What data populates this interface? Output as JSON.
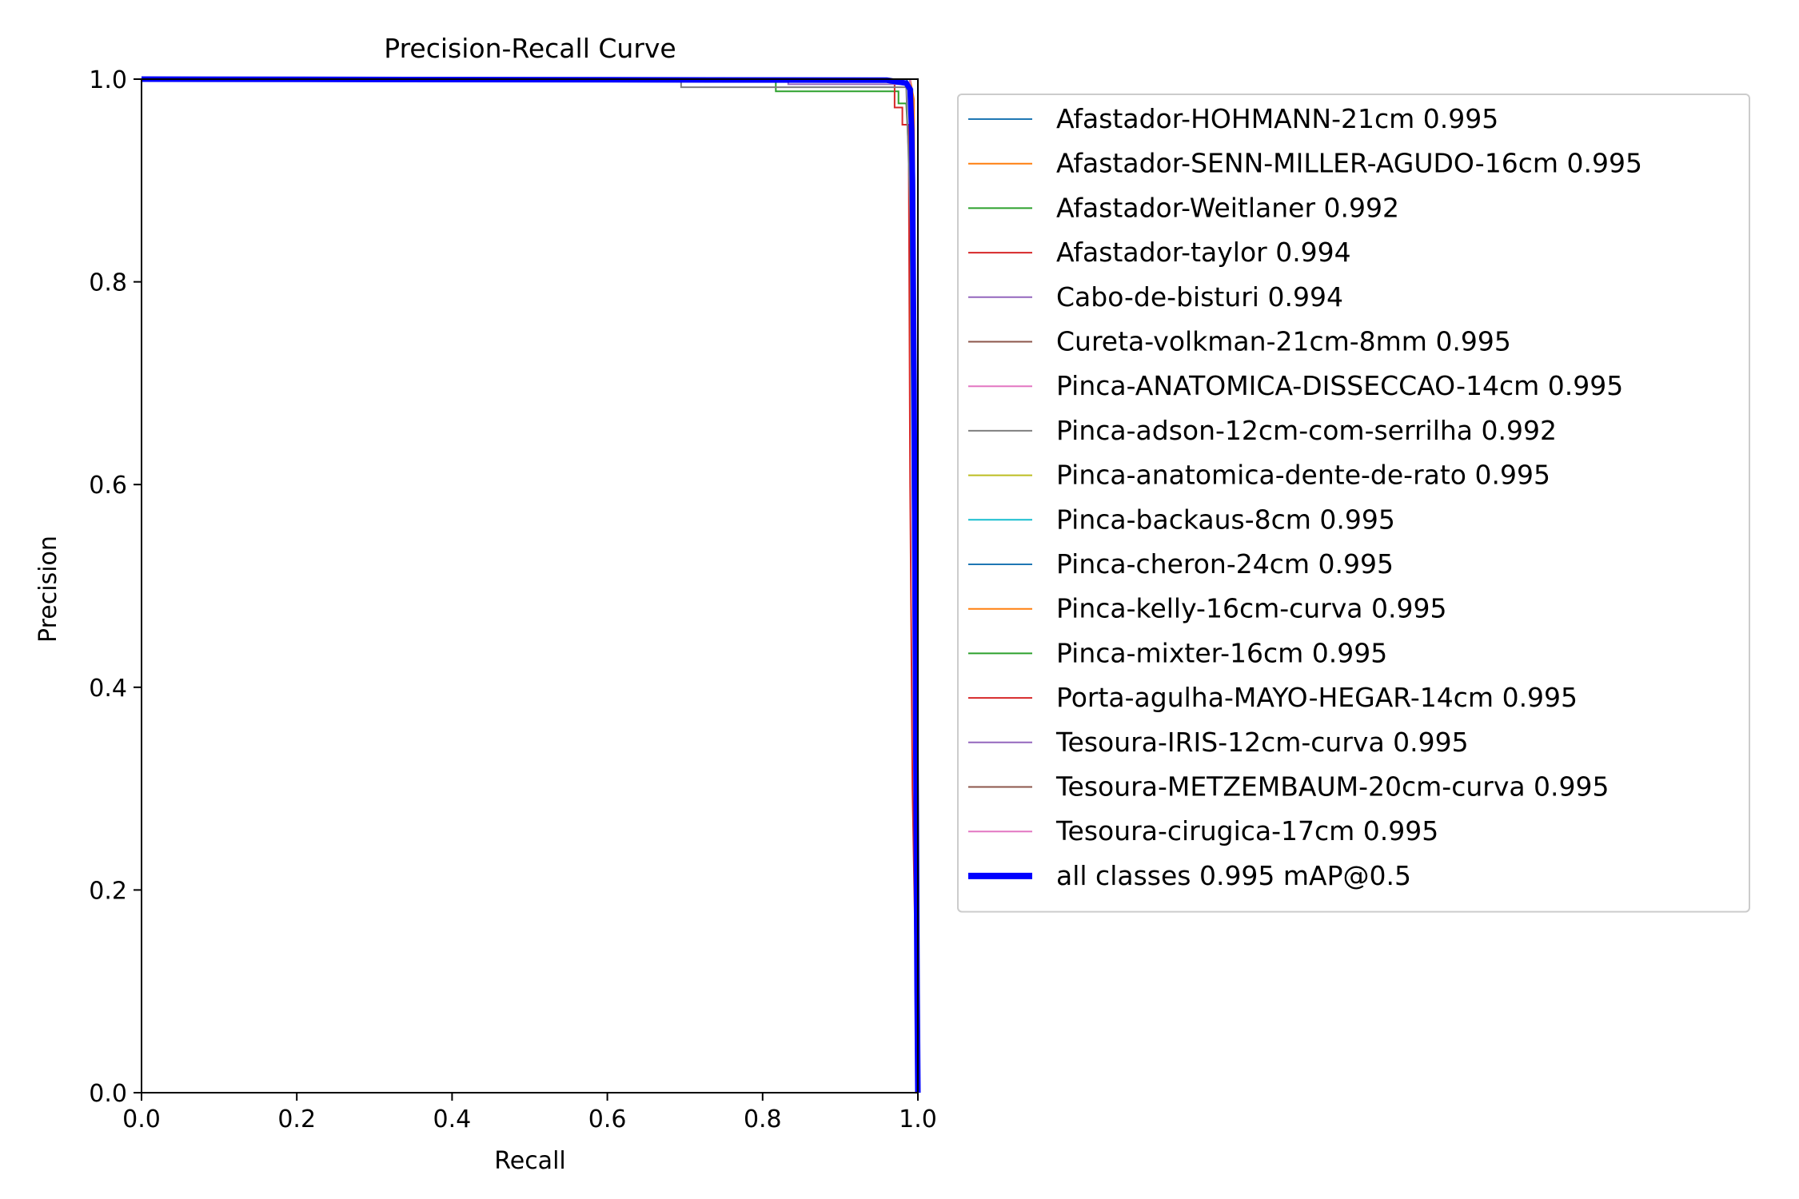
{
  "chart_data": {
    "type": "line",
    "title": "Precision-Recall Curve",
    "xlabel": "Recall",
    "ylabel": "Precision",
    "xlim": [
      0.0,
      1.0
    ],
    "ylim": [
      0.0,
      1.0
    ],
    "xticks": [
      "0.0",
      "0.2",
      "0.4",
      "0.6",
      "0.8",
      "1.0"
    ],
    "yticks": [
      "0.0",
      "0.2",
      "0.4",
      "0.6",
      "0.8",
      "1.0"
    ],
    "grid": false,
    "legend_position": "outside-right",
    "series": [
      {
        "name": "Afastador-HOHMANN-21cm 0.995",
        "color": "#1f77b4",
        "points": [
          [
            0.0,
            1.0
          ],
          [
            0.985,
            1.0
          ],
          [
            0.993,
            0.99
          ],
          [
            0.997,
            0.5
          ],
          [
            1.0,
            0.0
          ]
        ]
      },
      {
        "name": "Afastador-SENN-MILLER-AGUDO-16cm 0.995",
        "color": "#ff7f0e",
        "points": [
          [
            0.0,
            1.0
          ],
          [
            0.99,
            1.0
          ],
          [
            0.995,
            0.98
          ],
          [
            0.998,
            0.4
          ],
          [
            1.0,
            0.0
          ]
        ]
      },
      {
        "name": "Afastador-Weitlaner 0.992",
        "color": "#2ca02c",
        "points": [
          [
            0.0,
            1.0
          ],
          [
            0.817,
            1.0
          ],
          [
            0.817,
            0.988
          ],
          [
            0.975,
            0.988
          ],
          [
            0.975,
            0.976
          ],
          [
            0.985,
            0.976
          ],
          [
            0.99,
            0.9
          ],
          [
            0.996,
            0.3
          ],
          [
            1.0,
            0.0
          ]
        ]
      },
      {
        "name": "Afastador-taylor 0.994",
        "color": "#d62728",
        "points": [
          [
            0.0,
            1.0
          ],
          [
            0.97,
            1.0
          ],
          [
            0.97,
            0.972
          ],
          [
            0.98,
            0.972
          ],
          [
            0.98,
            0.955
          ],
          [
            0.988,
            0.955
          ],
          [
            0.99,
            0.6
          ],
          [
            0.993,
            0.3
          ],
          [
            1.0,
            0.0
          ]
        ]
      },
      {
        "name": "Cabo-de-bisturi 0.994",
        "color": "#9467bd",
        "points": [
          [
            0.0,
            1.0
          ],
          [
            0.833,
            1.0
          ],
          [
            0.833,
            0.995
          ],
          [
            0.99,
            0.995
          ],
          [
            0.996,
            0.5
          ],
          [
            1.0,
            0.0
          ]
        ]
      },
      {
        "name": "Cureta-volkman-21cm-8mm 0.995",
        "color": "#8c564b",
        "points": [
          [
            0.0,
            1.0
          ],
          [
            0.99,
            1.0
          ],
          [
            0.996,
            0.6
          ],
          [
            1.0,
            0.0
          ]
        ]
      },
      {
        "name": "Pinca-ANATOMICA-DISSECCAO-14cm 0.995",
        "color": "#e377c2",
        "points": [
          [
            0.0,
            1.0
          ],
          [
            0.99,
            1.0
          ],
          [
            0.996,
            0.6
          ],
          [
            1.0,
            0.0
          ]
        ]
      },
      {
        "name": "Pinca-adson-12cm-com-serrilha 0.992",
        "color": "#7f7f7f",
        "points": [
          [
            0.0,
            1.0
          ],
          [
            0.695,
            1.0
          ],
          [
            0.695,
            0.992
          ],
          [
            0.985,
            0.992
          ],
          [
            0.993,
            0.8
          ],
          [
            0.997,
            0.3
          ],
          [
            1.0,
            0.0
          ]
        ]
      },
      {
        "name": "Pinca-anatomica-dente-de-rato 0.995",
        "color": "#bcbd22",
        "points": [
          [
            0.0,
            1.0
          ],
          [
            0.99,
            1.0
          ],
          [
            0.996,
            0.6
          ],
          [
            1.0,
            0.0
          ]
        ]
      },
      {
        "name": "Pinca-backaus-8cm 0.995",
        "color": "#17becf",
        "points": [
          [
            0.0,
            1.0
          ],
          [
            0.99,
            1.0
          ],
          [
            0.996,
            0.6
          ],
          [
            1.0,
            0.0
          ]
        ]
      },
      {
        "name": "Pinca-cheron-24cm 0.995",
        "color": "#1f77b4",
        "points": [
          [
            0.0,
            1.0
          ],
          [
            0.99,
            1.0
          ],
          [
            0.996,
            0.6
          ],
          [
            1.0,
            0.0
          ]
        ]
      },
      {
        "name": "Pinca-kelly-16cm-curva 0.995",
        "color": "#ff7f0e",
        "points": [
          [
            0.0,
            1.0
          ],
          [
            0.99,
            1.0
          ],
          [
            0.996,
            0.6
          ],
          [
            1.0,
            0.0
          ]
        ]
      },
      {
        "name": "Pinca-mixter-16cm 0.995",
        "color": "#2ca02c",
        "points": [
          [
            0.0,
            1.0
          ],
          [
            0.99,
            1.0
          ],
          [
            0.996,
            0.6
          ],
          [
            1.0,
            0.0
          ]
        ]
      },
      {
        "name": "Porta-agulha-MAYO-HEGAR-14cm 0.995",
        "color": "#d62728",
        "points": [
          [
            0.0,
            1.0
          ],
          [
            0.99,
            1.0
          ],
          [
            0.996,
            0.6
          ],
          [
            1.0,
            0.0
          ]
        ]
      },
      {
        "name": "Tesoura-IRIS-12cm-curva 0.995",
        "color": "#9467bd",
        "points": [
          [
            0.0,
            1.0
          ],
          [
            0.99,
            1.0
          ],
          [
            0.996,
            0.6
          ],
          [
            1.0,
            0.0
          ]
        ]
      },
      {
        "name": "Tesoura-METZEMBAUM-20cm-curva 0.995",
        "color": "#8c564b",
        "points": [
          [
            0.0,
            1.0
          ],
          [
            0.99,
            1.0
          ],
          [
            0.996,
            0.6
          ],
          [
            1.0,
            0.0
          ]
        ]
      },
      {
        "name": "Tesoura-cirugica-17cm 0.995",
        "color": "#e377c2",
        "points": [
          [
            0.0,
            1.0
          ],
          [
            0.99,
            1.0
          ],
          [
            0.996,
            0.6
          ],
          [
            1.0,
            0.0
          ]
        ]
      },
      {
        "name": "all classes 0.995 mAP@0.5",
        "color": "#0000ff",
        "bold": true,
        "points": [
          [
            0.0,
            1.0
          ],
          [
            0.96,
            0.999
          ],
          [
            0.985,
            0.996
          ],
          [
            0.99,
            0.99
          ],
          [
            0.992,
            0.95
          ],
          [
            0.993,
            0.9
          ],
          [
            0.995,
            0.7
          ],
          [
            0.997,
            0.4
          ],
          [
            0.999,
            0.1
          ],
          [
            1.0,
            0.0
          ]
        ]
      }
    ]
  }
}
